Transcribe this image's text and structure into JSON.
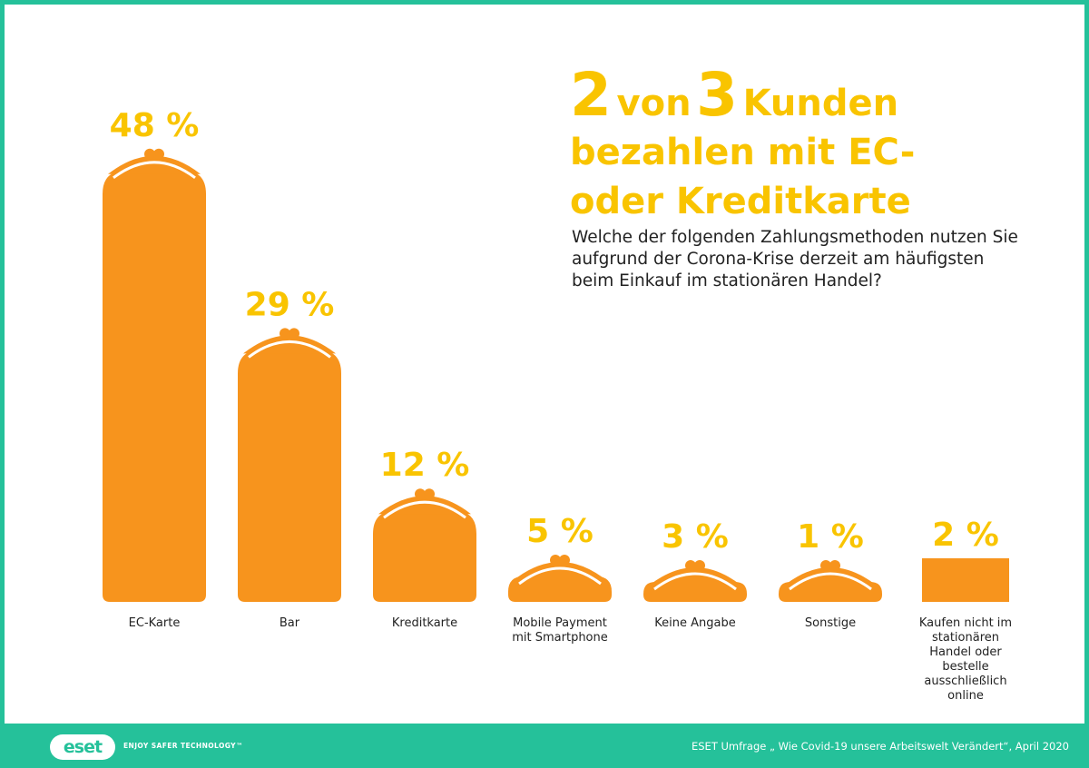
{
  "title": {
    "num1": "2",
    "word1": "von",
    "num2": "3",
    "word2": "Kunden",
    "line2": "bezahlen mit EC-",
    "line3": "oder Kreditkarte"
  },
  "subtitle": "Welche der folgenden Zahlungsmethoden nutzen Sie aufgrund der Corona-Krise derzeit am häufigsten beim Einkauf im stationären Handel?",
  "chart_data": {
    "type": "bar",
    "categories": [
      [
        "EC-Karte"
      ],
      [
        "Bar"
      ],
      [
        "Kreditkarte"
      ],
      [
        "Mobile Payment",
        "mit Smartphone"
      ],
      [
        "Keine Angabe"
      ],
      [
        "Sonstige"
      ],
      [
        "Kaufen nicht im",
        "stationären",
        "Handel oder",
        "bestelle",
        "ausschließlich",
        "online"
      ]
    ],
    "values": [
      48,
      29,
      12,
      5,
      3,
      1,
      2
    ],
    "value_labels": [
      "48 %",
      "29 %",
      "12 %",
      "5 %",
      "3 %",
      "1 %",
      "2 %"
    ],
    "unit": "%",
    "colors": {
      "bar": "#f7941d",
      "label": "#f9c400"
    }
  },
  "footer": {
    "logo": "eset",
    "tagline": "ENJOY SAFER TECHNOLOGY™",
    "source": "ESET Umfrage „ Wie Covid-19 unsere Arbeitswelt Verändert“, April 2020"
  },
  "colors": {
    "frame": "#25c19a",
    "accent": "#f9c400",
    "bars": "#f7941d"
  }
}
